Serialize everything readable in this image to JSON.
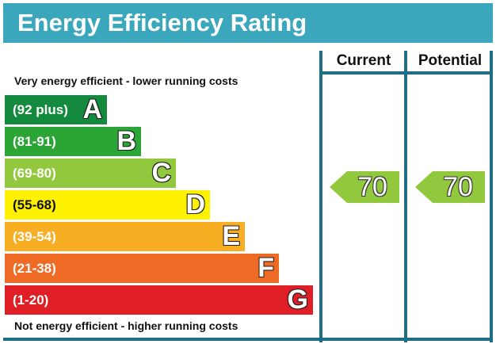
{
  "header": {
    "title": "Energy Efficiency Rating"
  },
  "columns": {
    "current": "Current",
    "potential": "Potential"
  },
  "captions": {
    "top": "Very energy efficient - lower running costs",
    "bottom": "Not energy efficient - higher running costs"
  },
  "colors": {
    "header": "#3aa7bd",
    "grid": "#1e6f86"
  },
  "chart_data": {
    "type": "bar",
    "title": "Energy Efficiency Rating",
    "categories": [
      "A",
      "B",
      "C",
      "D",
      "E",
      "F",
      "G"
    ],
    "ranges": [
      "(92 plus)",
      "(81-91)",
      "(69-80)",
      "(55-68)",
      "(39-54)",
      "(21-38)",
      "(1-20)"
    ],
    "band_colors": [
      "#148a3e",
      "#2ba536",
      "#92c83e",
      "#fff200",
      "#f7ae22",
      "#ee6a25",
      "#e01e26"
    ],
    "current": 70,
    "current_band": "C",
    "potential": 70,
    "potential_band": "C"
  }
}
